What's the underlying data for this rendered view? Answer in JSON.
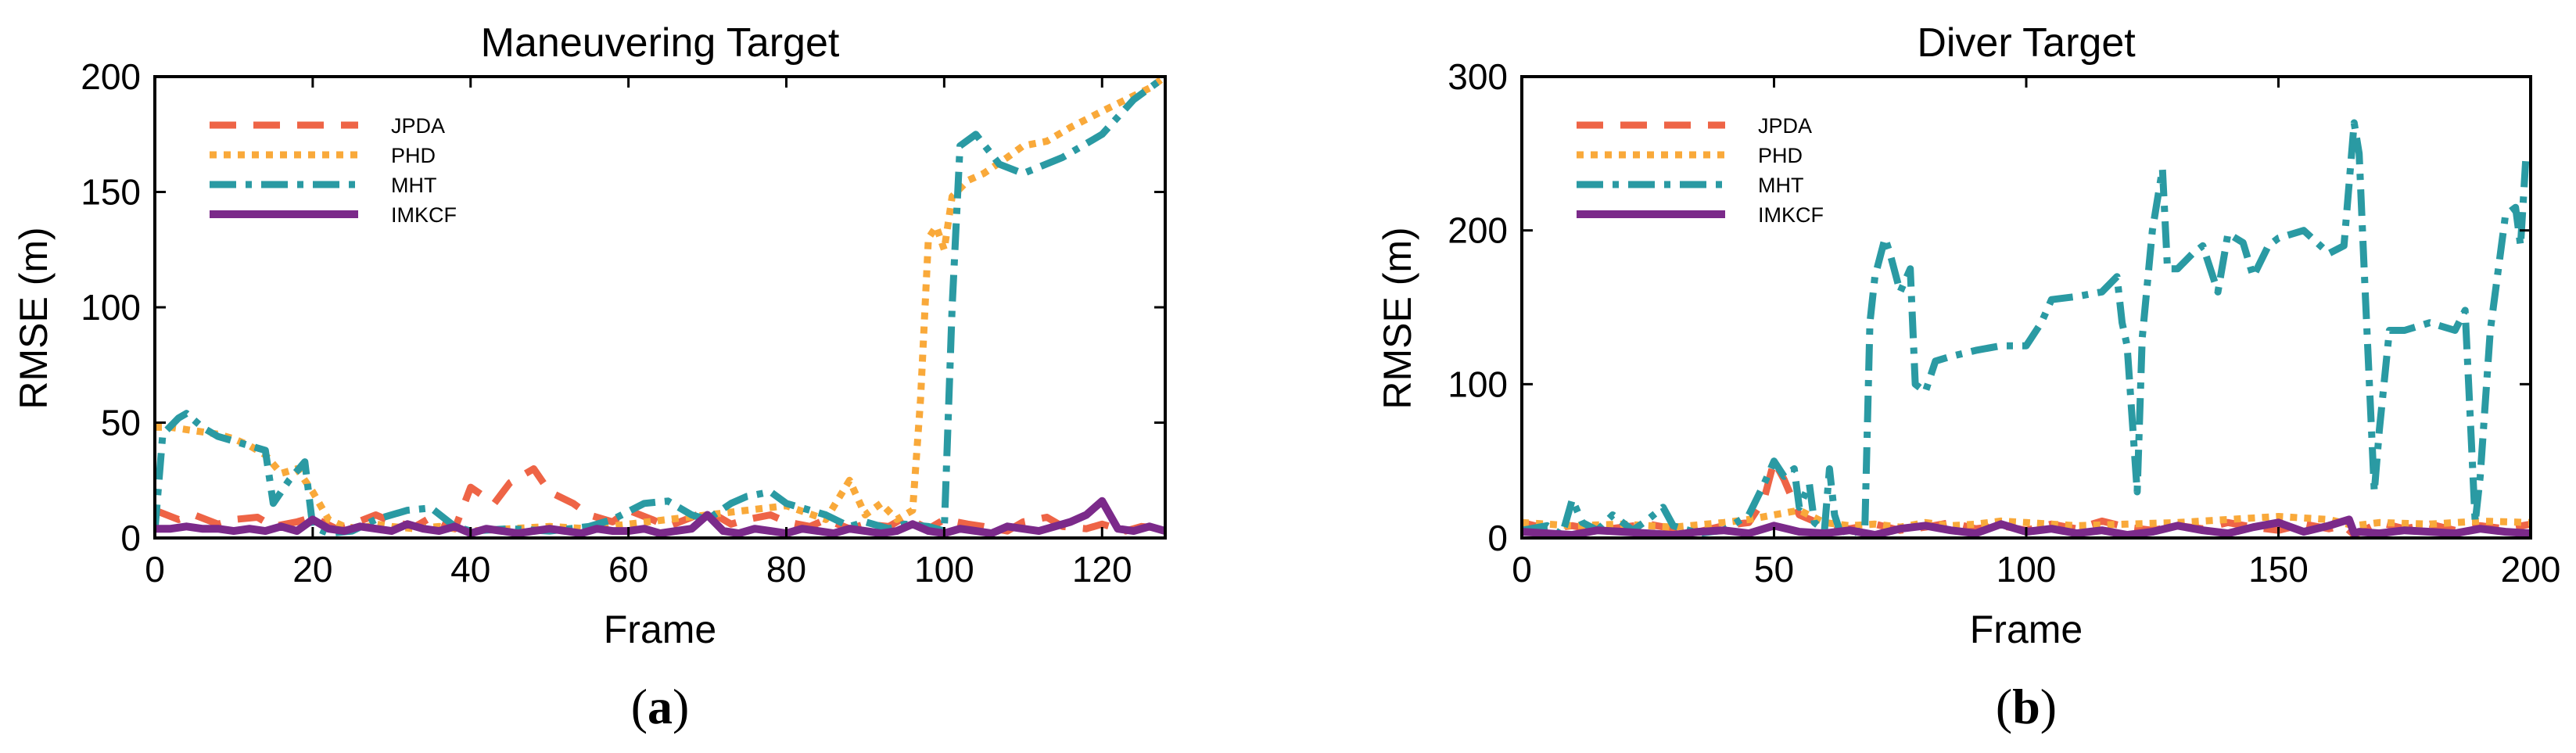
{
  "chart_data": [
    {
      "type": "line",
      "title": "Maneuvering Target",
      "xlabel": "Frame",
      "ylabel": "RMSE (m)",
      "xlim": [
        0,
        128
      ],
      "ylim": [
        0,
        200
      ],
      "xticks": [
        0,
        20,
        40,
        60,
        80,
        100,
        120
      ],
      "yticks": [
        0,
        50,
        100,
        150,
        200
      ],
      "panel_label": "a",
      "legend_position": "top-left",
      "series": [
        {
          "name": "JPDA",
          "color": "#ee6446",
          "dash": "dashed",
          "x": [
            0,
            3,
            5,
            8,
            10,
            13,
            15,
            18,
            20,
            23,
            25,
            28,
            30,
            33,
            35,
            38,
            40,
            43,
            45,
            48,
            50,
            53,
            55,
            58,
            60,
            63,
            65,
            68,
            70,
            73,
            75,
            78,
            80,
            83,
            85,
            88,
            90,
            93,
            95,
            98,
            100,
            103,
            105,
            108,
            110,
            113,
            115,
            118,
            120,
            123,
            125,
            128
          ],
          "y": [
            12,
            8,
            10,
            6,
            8,
            9,
            5,
            7,
            9,
            4,
            6,
            10,
            7,
            5,
            9,
            4,
            22,
            15,
            24,
            30,
            20,
            15,
            10,
            7,
            12,
            8,
            5,
            9,
            12,
            6,
            8,
            10,
            7,
            5,
            8,
            4,
            6,
            5,
            9,
            4,
            8,
            6,
            5,
            3,
            7,
            9,
            5,
            4,
            6,
            3,
            5,
            4
          ]
        },
        {
          "name": "PHD",
          "color": "#f9a93a",
          "dash": "dotted",
          "x": [
            0,
            2,
            4,
            6,
            8,
            10,
            12,
            14,
            16,
            18,
            20,
            22,
            24,
            26,
            28,
            30,
            33,
            36,
            40,
            45,
            50,
            55,
            60,
            65,
            70,
            75,
            80,
            85,
            88,
            90,
            92,
            94,
            96,
            97,
            98,
            99,
            100,
            101,
            103,
            105,
            108,
            110,
            113,
            116,
            120,
            123,
            126,
            128
          ],
          "y": [
            48,
            48,
            47,
            46,
            45,
            43,
            40,
            36,
            28,
            30,
            20,
            8,
            5,
            4,
            6,
            5,
            4,
            5,
            3,
            4,
            5,
            4,
            6,
            8,
            10,
            12,
            14,
            8,
            25,
            10,
            15,
            8,
            12,
            60,
            130,
            135,
            125,
            148,
            155,
            158,
            165,
            170,
            172,
            178,
            185,
            190,
            195,
            200
          ]
        },
        {
          "name": "MHT",
          "color": "#2a9aa3",
          "dash": "dashdot",
          "x": [
            0,
            1,
            3,
            4,
            6,
            8,
            10,
            12,
            14,
            15,
            17,
            19,
            20,
            22,
            25,
            28,
            32,
            35,
            38,
            40,
            45,
            50,
            55,
            58,
            62,
            65,
            68,
            70,
            73,
            75,
            78,
            80,
            85,
            88,
            90,
            93,
            95,
            98,
            100,
            101,
            102,
            104,
            107,
            110,
            115,
            120,
            124,
            128
          ],
          "y": [
            3,
            45,
            52,
            54,
            48,
            44,
            42,
            40,
            38,
            15,
            25,
            33,
            5,
            2,
            3,
            8,
            12,
            13,
            5,
            3,
            4,
            3,
            5,
            8,
            15,
            16,
            10,
            8,
            15,
            18,
            20,
            15,
            10,
            5,
            7,
            4,
            6,
            5,
            3,
            100,
            170,
            175,
            162,
            158,
            165,
            175,
            190,
            200
          ]
        },
        {
          "name": "IMKCF",
          "color": "#7b2a8a",
          "dash": "solid",
          "x": [
            0,
            2,
            4,
            6,
            8,
            10,
            12,
            14,
            16,
            18,
            20,
            22,
            24,
            26,
            28,
            30,
            32,
            34,
            36,
            38,
            40,
            42,
            44,
            46,
            48,
            50,
            52,
            54,
            56,
            58,
            60,
            62,
            64,
            66,
            68,
            70,
            72,
            74,
            76,
            78,
            80,
            82,
            84,
            86,
            88,
            90,
            92,
            94,
            96,
            98,
            100,
            102,
            104,
            106,
            108,
            110,
            112,
            114,
            116,
            118,
            119,
            120,
            122,
            124,
            126,
            128
          ],
          "y": [
            4,
            4,
            5,
            4,
            4,
            3,
            4,
            3,
            5,
            3,
            8,
            4,
            3,
            5,
            4,
            3,
            6,
            4,
            3,
            5,
            2,
            4,
            3,
            2,
            3,
            4,
            3,
            2,
            4,
            3,
            3,
            4,
            2,
            3,
            4,
            10,
            3,
            2,
            4,
            3,
            2,
            4,
            3,
            2,
            4,
            3,
            2,
            3,
            6,
            3,
            2,
            4,
            3,
            2,
            5,
            4,
            3,
            5,
            7,
            10,
            13,
            16,
            4,
            3,
            5,
            3
          ]
        }
      ]
    },
    {
      "type": "line",
      "title": "Diver Target",
      "xlabel": "Frame",
      "ylabel": "RMSE (m)",
      "xlim": [
        0,
        200
      ],
      "ylim": [
        0,
        300
      ],
      "xticks": [
        0,
        50,
        100,
        150,
        200
      ],
      "yticks": [
        0,
        100,
        200,
        300
      ],
      "panel_label": "b",
      "legend_position": "top-left",
      "series": [
        {
          "name": "JPDA",
          "color": "#ee6446",
          "dash": "dashed",
          "x": [
            0,
            5,
            10,
            15,
            20,
            25,
            30,
            35,
            40,
            45,
            48,
            50,
            52,
            55,
            60,
            65,
            70,
            75,
            80,
            85,
            90,
            95,
            100,
            105,
            110,
            115,
            120,
            125,
            130,
            135,
            140,
            145,
            150,
            155,
            160,
            163,
            165,
            170,
            175,
            180,
            185,
            190,
            195,
            200
          ],
          "y": [
            10,
            6,
            8,
            5,
            7,
            9,
            6,
            4,
            8,
            10,
            25,
            50,
            38,
            15,
            8,
            6,
            9,
            5,
            7,
            10,
            6,
            8,
            5,
            9,
            6,
            11,
            7,
            5,
            8,
            6,
            10,
            7,
            5,
            9,
            6,
            8,
            2,
            10,
            6,
            9,
            5,
            8,
            6,
            9
          ]
        },
        {
          "name": "PHD",
          "color": "#f9a93a",
          "dash": "dotted",
          "x": [
            0,
            10,
            20,
            30,
            40,
            45,
            50,
            55,
            60,
            65,
            70,
            75,
            80,
            85,
            90,
            95,
            100,
            110,
            120,
            130,
            140,
            150,
            160,
            165,
            170,
            180,
            190,
            200
          ],
          "y": [
            10,
            8,
            9,
            7,
            10,
            12,
            15,
            18,
            10,
            8,
            9,
            7,
            10,
            8,
            9,
            11,
            10,
            8,
            9,
            10,
            12,
            14,
            12,
            8,
            10,
            9,
            11,
            10
          ]
        },
        {
          "name": "MHT",
          "color": "#2a9aa3",
          "dash": "dashdot",
          "x": [
            0,
            5,
            8,
            10,
            12,
            15,
            18,
            20,
            22,
            25,
            28,
            30,
            35,
            40,
            45,
            48,
            50,
            52,
            54,
            55,
            57,
            58,
            60,
            61,
            62,
            63,
            65,
            68,
            69,
            70,
            72,
            73,
            75,
            77,
            78,
            80,
            82,
            85,
            90,
            95,
            100,
            103,
            105,
            110,
            115,
            118,
            119,
            120,
            122,
            123,
            125,
            127,
            128,
            130,
            133,
            135,
            138,
            140,
            143,
            145,
            148,
            150,
            155,
            160,
            163,
            165,
            166,
            167,
            169,
            170,
            172,
            175,
            180,
            185,
            187,
            188,
            189,
            190,
            192,
            195,
            197,
            198,
            199
          ],
          "y": [
            5,
            8,
            2,
            25,
            10,
            5,
            15,
            10,
            5,
            12,
            20,
            8,
            3,
            5,
            15,
            35,
            50,
            40,
            45,
            20,
            35,
            10,
            5,
            45,
            15,
            5,
            3,
            5,
            140,
            170,
            195,
            185,
            160,
            175,
            100,
            95,
            115,
            118,
            122,
            125,
            125,
            140,
            155,
            157,
            160,
            170,
            140,
            125,
            30,
            130,
            200,
            240,
            175,
            175,
            185,
            190,
            160,
            198,
            192,
            170,
            190,
            195,
            200,
            185,
            190,
            270,
            250,
            175,
            30,
            70,
            135,
            135,
            140,
            135,
            148,
            80,
            10,
            40,
            135,
            210,
            215,
            190,
            245
          ]
        },
        {
          "name": "IMKCF",
          "color": "#7b2a8a",
          "dash": "solid",
          "x": [
            0,
            5,
            10,
            15,
            20,
            25,
            30,
            35,
            40,
            45,
            50,
            55,
            60,
            65,
            70,
            75,
            80,
            85,
            90,
            95,
            100,
            105,
            110,
            115,
            120,
            125,
            130,
            135,
            140,
            145,
            150,
            155,
            160,
            164,
            165,
            166,
            170,
            175,
            180,
            185,
            190,
            195,
            200
          ],
          "y": [
            4,
            3,
            2,
            5,
            4,
            3,
            2,
            4,
            5,
            3,
            8,
            4,
            3,
            5,
            2,
            6,
            8,
            5,
            3,
            9,
            4,
            6,
            3,
            5,
            2,
            4,
            8,
            5,
            3,
            7,
            10,
            4,
            8,
            12,
            3,
            4,
            3,
            5,
            4,
            3,
            6,
            4,
            3
          ]
        }
      ]
    }
  ]
}
